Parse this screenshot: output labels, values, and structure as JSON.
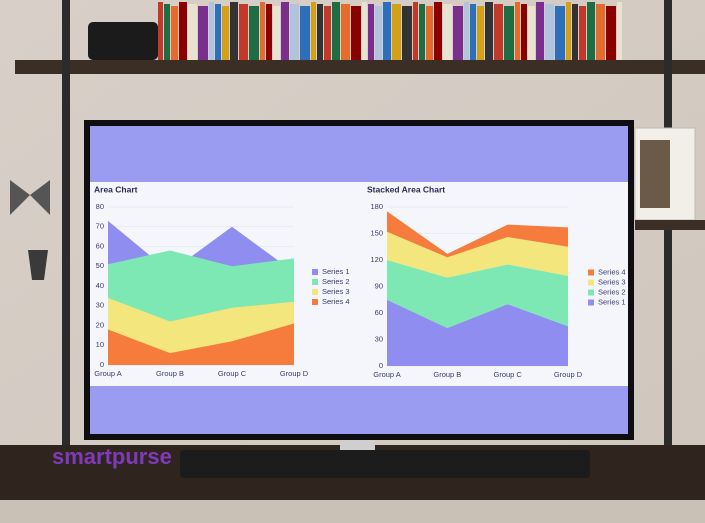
{
  "watermark": "smartpurse",
  "chart_data": [
    {
      "type": "area",
      "title": "Area Chart",
      "stacked": false,
      "categories": [
        "Group A",
        "Group B",
        "Group C",
        "Group D"
      ],
      "series": [
        {
          "name": "Series 1",
          "color": "#8f8ef0",
          "values": [
            73,
            47,
            70,
            47
          ]
        },
        {
          "name": "Series 2",
          "color": "#7de8b4",
          "values": [
            51,
            58,
            50,
            54
          ]
        },
        {
          "name": "Series 3",
          "color": "#f2e67c",
          "values": [
            34,
            22,
            29,
            32
          ]
        },
        {
          "name": "Series 4",
          "color": "#f57c3c",
          "values": [
            18,
            6,
            12,
            21
          ]
        }
      ],
      "ylim": [
        0,
        80
      ],
      "yticks": [
        0,
        10,
        20,
        30,
        40,
        50,
        60,
        70,
        80
      ],
      "grid": true,
      "legend": "right"
    },
    {
      "type": "area",
      "title": "Stacked Area Chart",
      "stacked": true,
      "categories": [
        "Group A",
        "Group B",
        "Group C",
        "Group D"
      ],
      "series": [
        {
          "name": "Series 1",
          "color": "#8f8ef0",
          "values": [
            75,
            43,
            70,
            45
          ]
        },
        {
          "name": "Series 2",
          "color": "#7de8b4",
          "values": [
            45,
            57,
            45,
            57
          ]
        },
        {
          "name": "Series 3",
          "color": "#f2e67c",
          "values": [
            32,
            23,
            31,
            33
          ]
        },
        {
          "name": "Series 4",
          "color": "#f57c3c",
          "values": [
            23,
            4,
            14,
            22
          ]
        }
      ],
      "ylim": [
        0,
        180
      ],
      "yticks": [
        0,
        30,
        60,
        90,
        120,
        150,
        180
      ],
      "grid": true,
      "legend": "right"
    }
  ]
}
